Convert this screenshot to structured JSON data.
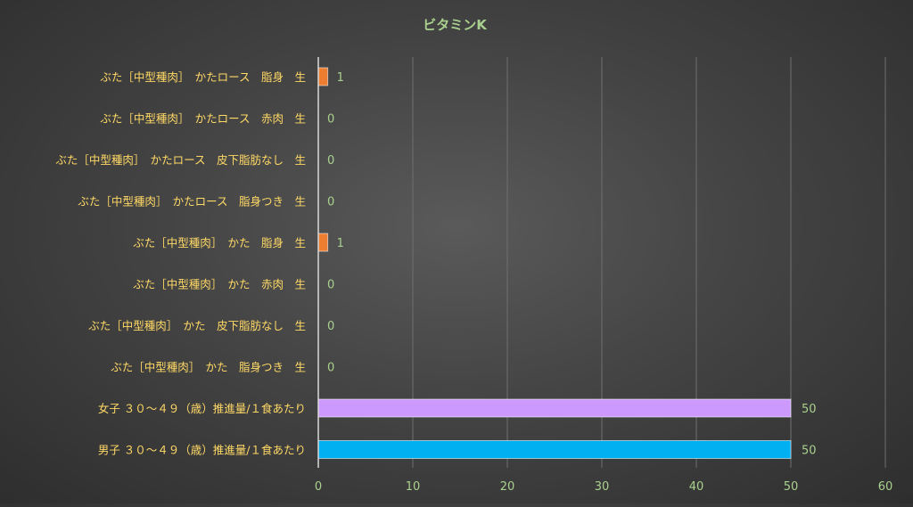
{
  "chart_data": {
    "type": "bar",
    "orientation": "horizontal",
    "title": "ビタミンK",
    "xlim": [
      0,
      60
    ],
    "x_ticks": [
      0,
      10,
      20,
      30,
      40,
      50,
      60
    ],
    "grid": true,
    "legend": "none",
    "categories": [
      "ぶた［中型種肉］　かたロース　脂身　生",
      "ぶた［中型種肉］　かたロース　赤肉　生",
      "ぶた［中型種肉］　かたロース　皮下脂肪なし　生",
      "ぶた［中型種肉］　かたロース　脂身つき　生",
      "ぶた［中型種肉］　かた　脂身　生",
      "ぶた［中型種肉］　かた　赤肉　生",
      "ぶた［中型種肉］　かた　皮下脂肪なし　生",
      "ぶた［中型種肉］　かた　脂身つき　生",
      "女子 ３０～４９（歳）推進量/１食あたり",
      "男子 ３０～４９（歳）推進量/１食あたり"
    ],
    "values": [
      1,
      0,
      0,
      0,
      1,
      0,
      0,
      0,
      50,
      50
    ],
    "bar_colors": [
      "#ED7D31",
      "#ED7D31",
      "#ED7D31",
      "#ED7D31",
      "#ED7D31",
      "#ED7D31",
      "#ED7D31",
      "#ED7D31",
      "#CC99FF",
      "#00B0F0"
    ],
    "colors": {
      "title": "#A9D18E",
      "category_label": "#FFD966",
      "tick_label": "#A9D18E",
      "data_label": "#A9D18E",
      "grid": "#6F6F6F",
      "axis": "#D9D9D9"
    }
  }
}
